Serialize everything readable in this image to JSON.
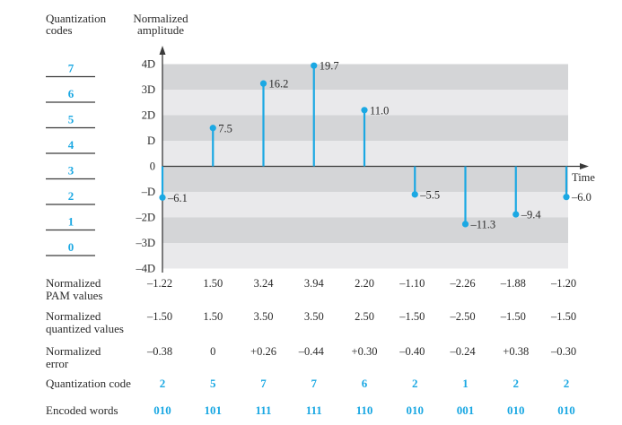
{
  "headers": {
    "codes_line1": "Quantization",
    "codes_line2": "codes",
    "amplitude_line1": "Normalized",
    "amplitude_line2": "amplitude"
  },
  "quantization_codes": [
    "7",
    "6",
    "5",
    "4",
    "3",
    "2",
    "1",
    "0"
  ],
  "chart_data": {
    "type": "stem",
    "title": "",
    "xlabel": "Time",
    "ylabel": "Normalized amplitude",
    "ylim_in_D": [
      -4,
      4
    ],
    "yticks": [
      {
        "value": 4,
        "label": "4D"
      },
      {
        "value": 3,
        "label": "3D"
      },
      {
        "value": 2,
        "label": "2D"
      },
      {
        "value": 1,
        "label": "D"
      },
      {
        "value": 0,
        "label": "0"
      },
      {
        "value": -1,
        "label": "–D"
      },
      {
        "value": -2,
        "label": "–2D"
      },
      {
        "value": -3,
        "label": "–3D"
      },
      {
        "value": -4,
        "label": "–4D"
      }
    ],
    "grid_bands": true,
    "samples": [
      {
        "amplitude": -6.1,
        "label": "–6.1",
        "normalized": -1.22
      },
      {
        "amplitude": 7.5,
        "label": "7.5",
        "normalized": 1.5
      },
      {
        "amplitude": 16.2,
        "label": "16.2",
        "normalized": 3.24
      },
      {
        "amplitude": 19.7,
        "label": "19.7",
        "normalized": 3.94
      },
      {
        "amplitude": 11.0,
        "label": "11.0",
        "normalized": 2.2
      },
      {
        "amplitude": -5.5,
        "label": "–5.5",
        "normalized": -1.1
      },
      {
        "amplitude": -11.3,
        "label": "–11.3",
        "normalized": -2.26
      },
      {
        "amplitude": -9.4,
        "label": "–9.4",
        "normalized": -1.88
      },
      {
        "amplitude": -6.0,
        "label": "–6.0",
        "normalized": -1.2
      }
    ]
  },
  "table": {
    "rows": [
      {
        "key": "pam",
        "label": [
          "Normalized",
          "PAM values"
        ],
        "style": "plain",
        "values": [
          "–1.22",
          "1.50",
          "3.24",
          "3.94",
          "2.20",
          "–1.10",
          "–2.26",
          "–1.88",
          "–1.20"
        ]
      },
      {
        "key": "quantized",
        "label": [
          "Normalized",
          "quantized values"
        ],
        "style": "plain",
        "values": [
          "–1.50",
          "1.50",
          "3.50",
          "3.50",
          "2.50",
          "–1.50",
          "–2.50",
          "–1.50",
          "–1.50"
        ]
      },
      {
        "key": "error",
        "label": [
          "Normalized",
          "error"
        ],
        "style": "plain",
        "values": [
          "–0.38",
          "0",
          "+0.26",
          "–0.44",
          "+0.30",
          "–0.40",
          "–0.24",
          "+0.38",
          "–0.30"
        ]
      },
      {
        "key": "code",
        "label": [
          "Quantization code"
        ],
        "style": "code",
        "values": [
          "2",
          "5",
          "7",
          "7",
          "6",
          "2",
          "1",
          "2",
          "2"
        ]
      },
      {
        "key": "encoded",
        "label": [
          "Encoded words"
        ],
        "style": "code",
        "values": [
          "010",
          "101",
          "111",
          "111",
          "110",
          "010",
          "001",
          "010",
          "010"
        ]
      }
    ]
  },
  "colors": {
    "accent": "#1ba8e3",
    "band_dark": "#d4d5d7",
    "band_light": "#e9e9eb",
    "text": "#2b2b2b"
  }
}
